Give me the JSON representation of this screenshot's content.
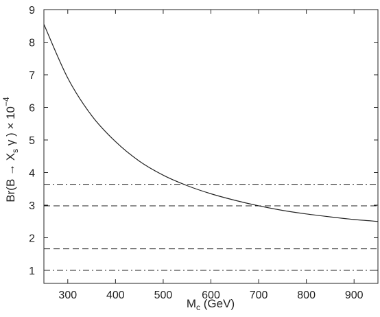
{
  "chart_data": {
    "type": "line",
    "xlabel": {
      "main": "M",
      "sub": "c",
      "rest": " (GeV)"
    },
    "ylabel": {
      "pre": "Br(B → X",
      "sub": "s",
      "mid": " γ )  × 10",
      "sup": "−4"
    },
    "xlim": [
      250,
      950
    ],
    "ylim": [
      0.6,
      9
    ],
    "xticks": [
      300,
      400,
      500,
      600,
      700,
      800,
      900
    ],
    "yticks": [
      1,
      2,
      3,
      4,
      5,
      6,
      7,
      8,
      9
    ],
    "grid": false,
    "series": [
      {
        "style": "solid",
        "x": [
          250,
          300,
          350,
          400,
          450,
          500,
          550,
          600,
          650,
          700,
          750,
          800,
          850,
          900,
          950
        ],
        "y": [
          8.55,
          6.9,
          5.75,
          4.95,
          4.35,
          3.92,
          3.6,
          3.35,
          3.15,
          2.98,
          2.84,
          2.73,
          2.64,
          2.56,
          2.5
        ]
      }
    ],
    "hlines": [
      {
        "y": 3.64,
        "style": "dash-dot"
      },
      {
        "y": 2.98,
        "style": "dashed"
      },
      {
        "y": 1.66,
        "style": "dashed"
      },
      {
        "y": 1.0,
        "style": "dash-dot"
      }
    ],
    "colors": {
      "line": "#222222",
      "axes": "#222222",
      "background": "#ffffff"
    }
  }
}
